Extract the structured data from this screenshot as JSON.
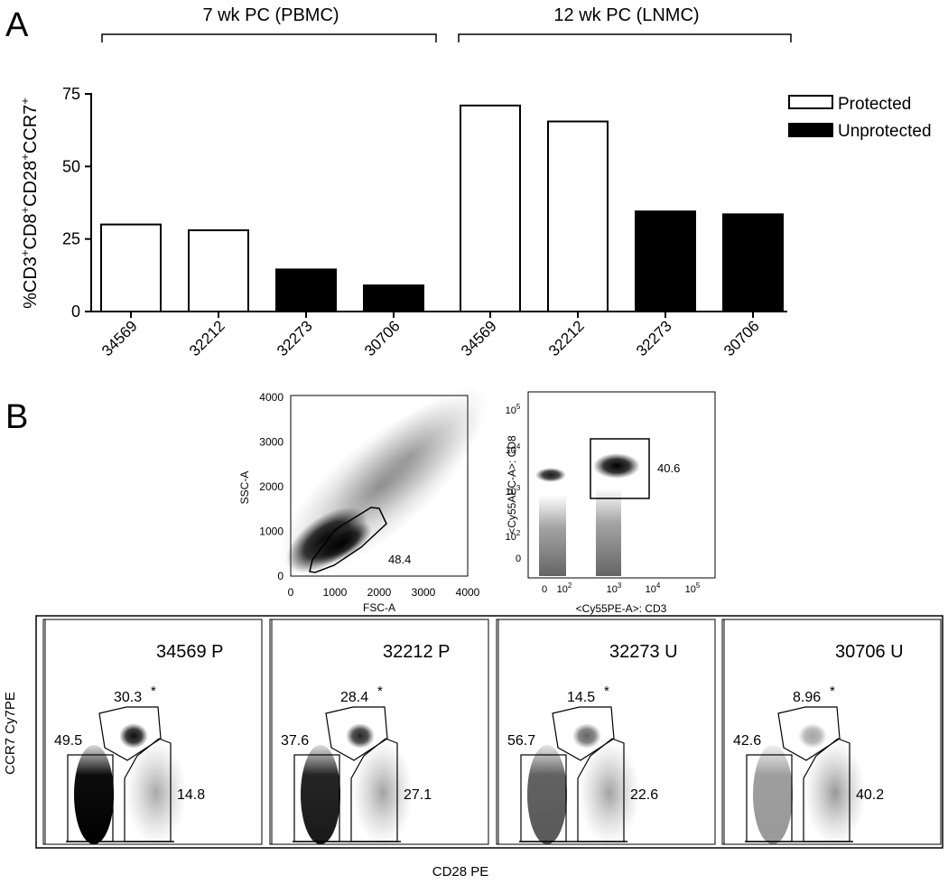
{
  "panel_a": {
    "letter": "A",
    "group_labels": [
      "7 wk PC (PBMC)",
      "12 wk PC (LNMC)"
    ]
  },
  "panel_b": {
    "letter": "B",
    "ssc_fsc": {
      "xlabel": "FSC-A",
      "ylabel": "SSC-A",
      "ticks": [
        0,
        1000,
        2000,
        3000,
        4000
      ],
      "gate_value": "48.4"
    },
    "cd8_cd3": {
      "xlabel": "<Cy55PE-A>: CD3",
      "ylabel": "<Cy55APC-A>: CD8",
      "gate_value": "40.6"
    },
    "subpanels": [
      {
        "title": "34569 P",
        "top": "30.3",
        "left": "49.5",
        "right": "14.8"
      },
      {
        "title": "32212 P",
        "top": "28.4",
        "left": "37.6",
        "right": "27.1"
      },
      {
        "title": "32273 U",
        "top": "14.5",
        "left": "56.7",
        "right": "22.6"
      },
      {
        "title": "30706 U",
        "top": "8.96",
        "left": "42.6",
        "right": "40.2"
      }
    ],
    "asterisk": "*",
    "ylabel": "CCR7 Cy7PE",
    "xlabel": "CD28 PE"
  },
  "chart_data": [
    {
      "type": "bar",
      "categories": [
        "34569",
        "32212",
        "32273",
        "30706",
        "34569",
        "32212",
        "32273",
        "30706"
      ],
      "values": [
        30,
        28,
        14.5,
        9,
        71,
        65.5,
        34.5,
        33.5
      ],
      "status": [
        "Protected",
        "Protected",
        "Unprotected",
        "Unprotected",
        "Protected",
        "Protected",
        "Unprotected",
        "Unprotected"
      ],
      "ylabel": "%CD3+CD8+CD28+CCR7+",
      "ylim": [
        0,
        75
      ],
      "yticks": [
        0,
        25,
        50,
        75
      ],
      "legend": [
        {
          "name": "Protected",
          "color": "#ffffff"
        },
        {
          "name": "Unprotected",
          "color": "#000000"
        }
      ],
      "legend_position": "top-right",
      "grid": false
    }
  ]
}
